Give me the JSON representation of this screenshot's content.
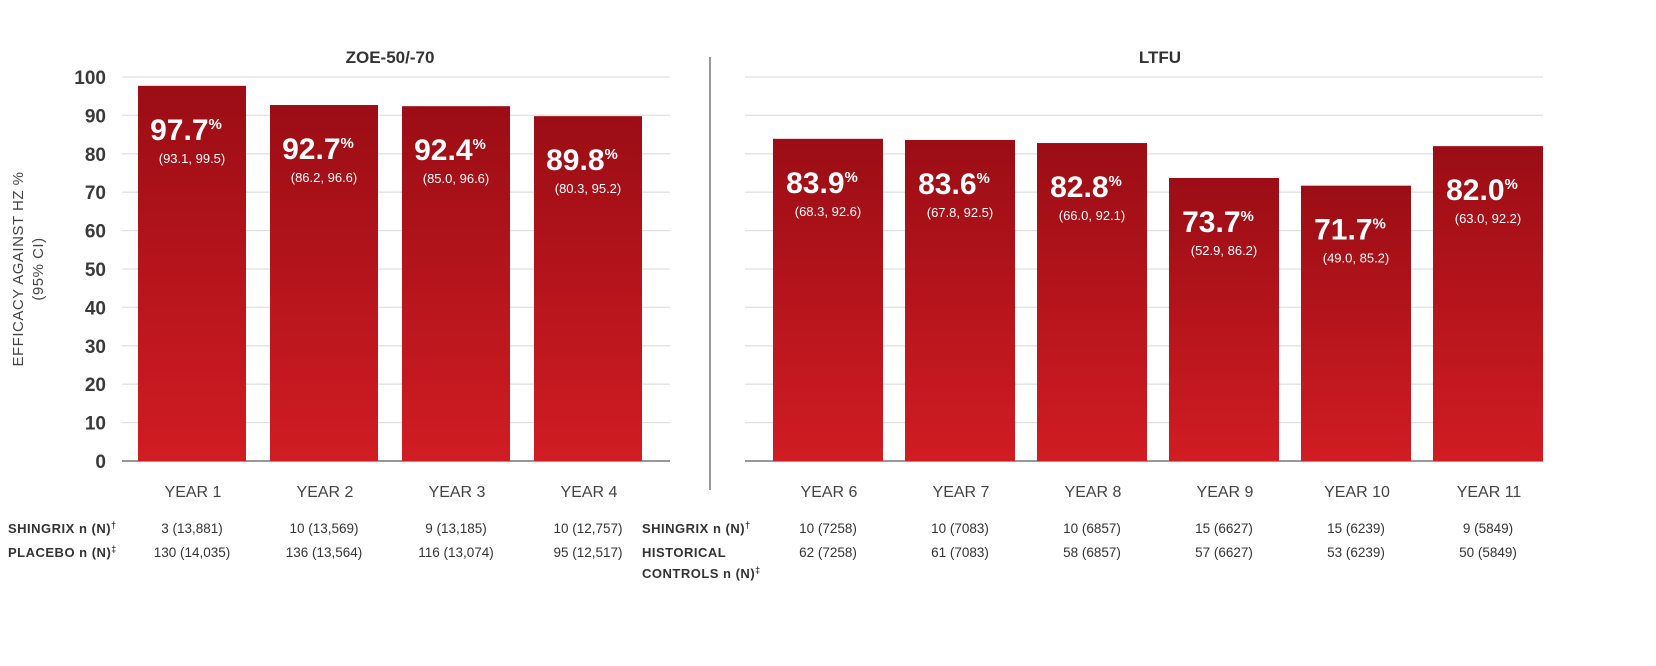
{
  "chart_data": {
    "type": "bar",
    "ylabel": [
      "EFFICACY AGAINST HZ %",
      "(95% CI)"
    ],
    "ylim": [
      0,
      100
    ],
    "yticks": [
      0,
      10,
      20,
      30,
      40,
      50,
      60,
      70,
      80,
      90,
      100
    ],
    "grid": true,
    "bar_color_top": "#9b0d15",
    "bar_color_bottom": "#d11c23",
    "panels": [
      {
        "title": "ZOE-50/-70",
        "categories": [
          "YEAR 1",
          "YEAR 2",
          "YEAR 3",
          "YEAR 4"
        ],
        "values": [
          97.7,
          92.7,
          92.4,
          89.8
        ],
        "ci": [
          "(93.1, 99.5)",
          "(86.2, 96.6)",
          "(85.0, 96.6)",
          "(80.3, 95.2)"
        ],
        "rows": [
          {
            "label": "SHINGRIX n (N)",
            "mark": "†",
            "cells": [
              "3 (13,881)",
              "10 (13,569)",
              "9 (13,185)",
              "10 (12,757)"
            ]
          },
          {
            "label": "PLACEBO n (N)",
            "mark": "‡",
            "cells": [
              "130 (14,035)",
              "136 (13,564)",
              "116 (13,074)",
              "95 (12,517)"
            ]
          }
        ]
      },
      {
        "title": "LTFU",
        "categories": [
          "YEAR 6",
          "YEAR 7",
          "YEAR 8",
          "YEAR 9",
          "YEAR 10",
          "YEAR 11"
        ],
        "values": [
          83.9,
          83.6,
          82.8,
          73.7,
          71.7,
          82.0
        ],
        "ci": [
          "(68.3, 92.6)",
          "(67.8, 92.5)",
          "(66.0, 92.1)",
          "(52.9, 86.2)",
          "(49.0, 85.2)",
          "(63.0, 92.2)"
        ],
        "rows": [
          {
            "label": "SHINGRIX n (N)",
            "mark": "†",
            "cells": [
              "10 (7258)",
              "10 (7083)",
              "10 (6857)",
              "15 (6627)",
              "15 (6239)",
              "9 (5849)"
            ]
          },
          {
            "label": "HISTORICAL CONTROLS n (N)",
            "label_lines": [
              "HISTORICAL",
              "CONTROLS n (N)"
            ],
            "mark": "‡",
            "cells": [
              "62 (7258)",
              "61 (7083)",
              "58 (6857)",
              "57 (6627)",
              "53 (6239)",
              "50 (5849)"
            ]
          }
        ]
      }
    ]
  }
}
